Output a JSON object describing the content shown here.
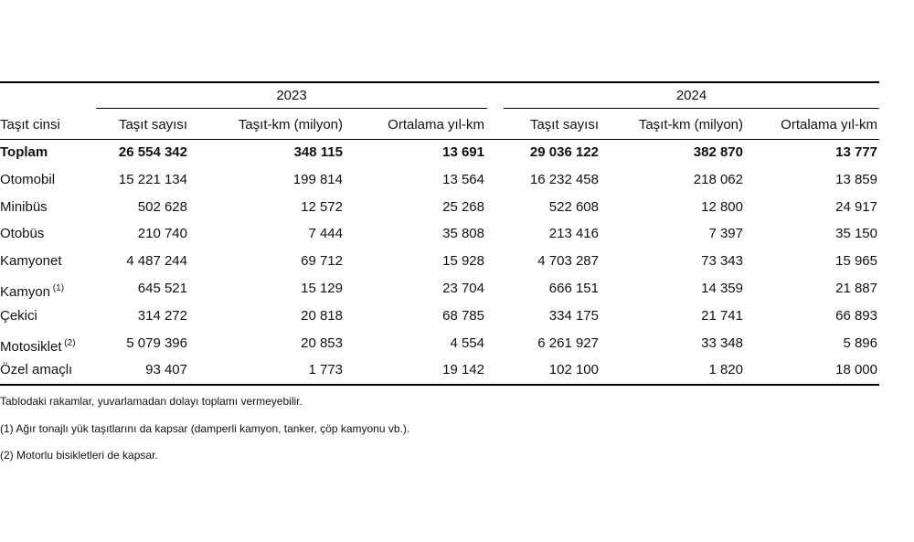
{
  "header": {
    "groups": [
      "2023",
      "2024"
    ],
    "columns": [
      "Taşıt cinsi",
      "Taşıt sayısı",
      "Taşıt-km (milyon)",
      "Ortalama yıl-km",
      "Taşıt sayısı",
      "Taşıt-km (milyon)",
      "Ortalama yıl-km"
    ]
  },
  "table": {
    "rows": [
      {
        "label": "Toplam",
        "cells": [
          "26 554 342",
          "348 115",
          "13 691",
          "29 036 122",
          "382 870",
          "13 777"
        ]
      },
      {
        "label": "Otomobil",
        "cells": [
          "15 221 134",
          "199 814",
          "13 564",
          "16 232 458",
          "218 062",
          "13 859"
        ]
      },
      {
        "label": "Minibüs",
        "cells": [
          "502 628",
          "12 572",
          "25 268",
          "522 608",
          "12 800",
          "24 917"
        ]
      },
      {
        "label": "Otobüs",
        "cells": [
          "210 740",
          "7 444",
          "35 808",
          "213 416",
          "7 397",
          "35 150"
        ]
      },
      {
        "label": "Kamyonet",
        "cells": [
          "4 487 244",
          "69 712",
          "15 928",
          "4 703 287",
          "73 343",
          "15 965"
        ]
      },
      {
        "label": "Kamyon",
        "note": "(1)",
        "cells": [
          "645 521",
          "15 129",
          "23 704",
          "666 151",
          "14 359",
          "21 887"
        ]
      },
      {
        "label": "Çekici",
        "cells": [
          "314 272",
          "20 818",
          "68 785",
          "334 175",
          "21 741",
          "66 893"
        ]
      },
      {
        "label": "Motosiklet",
        "note": "(2)",
        "cells": [
          "5 079 396",
          "20 853",
          "4 554",
          "6 261 927",
          "33 348",
          "5 896"
        ]
      },
      {
        "label": "Özel amaçlı",
        "cells": [
          "93 407",
          "1 773",
          "19 142",
          "102 100",
          "1 820",
          "18 000"
        ]
      }
    ]
  },
  "footnotes": [
    "Tablodaki rakamlar, yuvarlamadan dolayı toplamı vermeyebilir.",
    "(1) Ağır tonajlı yük taşıtlarını da kapsar (damperli kamyon, tanker, çöp kamyonu vb.).",
    "(2) Motorlu bisikletleri de kapsar."
  ]
}
